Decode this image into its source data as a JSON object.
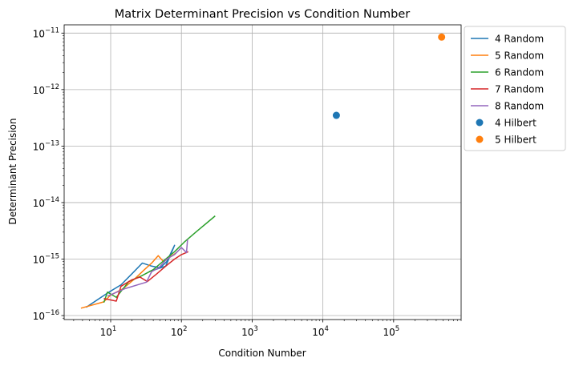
{
  "chart_data": {
    "type": "line",
    "title": "Matrix Determinant Precision vs Condition Number",
    "xlabel": "Condition Number",
    "ylabel": "Determinant Precision",
    "xscale": "log",
    "yscale": "log",
    "xlim": [
      2.2,
      900000
    ],
    "ylim": [
      8.5e-17,
      1.4e-11
    ],
    "grid": true,
    "legend_position": "outside-top-right",
    "x_ticks": [
      {
        "value": 10,
        "base": "10",
        "exp": "1"
      },
      {
        "value": 100,
        "base": "10",
        "exp": "2"
      },
      {
        "value": 1000,
        "base": "10",
        "exp": "3"
      },
      {
        "value": 10000,
        "base": "10",
        "exp": "4"
      },
      {
        "value": 100000,
        "base": "10",
        "exp": "5"
      }
    ],
    "y_ticks": [
      {
        "value": 1e-16,
        "base": "10",
        "exp": "−16"
      },
      {
        "value": 1e-15,
        "base": "10",
        "exp": "−15"
      },
      {
        "value": 1e-14,
        "base": "10",
        "exp": "−14"
      },
      {
        "value": 1e-13,
        "base": "10",
        "exp": "−13"
      },
      {
        "value": 1e-12,
        "base": "10",
        "exp": "−12"
      },
      {
        "value": 1e-11,
        "base": "10",
        "exp": "−11"
      }
    ],
    "series": [
      {
        "name": "4 Random",
        "kind": "line",
        "color": "#1f77b4",
        "points": [
          [
            4.5,
            1.4e-16
          ],
          [
            9,
            2.5e-16
          ],
          [
            14,
            3.5e-16
          ],
          [
            20,
            5.5e-16
          ],
          [
            28,
            8.5e-16
          ],
          [
            38,
            7.5e-16
          ],
          [
            50,
            7e-16
          ],
          [
            62,
            9e-16
          ],
          [
            80,
            1.75e-15
          ],
          [
            60,
            7.5e-16
          ],
          [
            35,
            6e-16
          ]
        ]
      },
      {
        "name": "5 Random",
        "kind": "line",
        "color": "#ff7f0e",
        "points": [
          [
            3.8,
            1.35e-16
          ],
          [
            8,
            1.75e-16
          ],
          [
            10,
            2.3e-16
          ],
          [
            15,
            3e-16
          ],
          [
            22,
            4.5e-16
          ],
          [
            30,
            6.5e-16
          ],
          [
            38,
            8.5e-16
          ],
          [
            47,
            1.15e-15
          ],
          [
            56,
            9e-16
          ],
          [
            70,
            1.1e-15
          ],
          [
            85,
            1.3e-15
          ]
        ]
      },
      {
        "name": "6 Random",
        "kind": "line",
        "color": "#2ca02c",
        "points": [
          [
            8,
            1.7e-16
          ],
          [
            9,
            2.6e-16
          ],
          [
            12,
            2.1e-16
          ],
          [
            18,
            4e-16
          ],
          [
            27,
            5e-16
          ],
          [
            40,
            6.5e-16
          ],
          [
            60,
            1e-15
          ],
          [
            80,
            1.35e-15
          ],
          [
            110,
            2e-15
          ],
          [
            160,
            3e-15
          ],
          [
            300,
            5.8e-15
          ]
        ]
      },
      {
        "name": "7 Random",
        "kind": "line",
        "color": "#d62728",
        "points": [
          [
            8,
            2e-16
          ],
          [
            12,
            1.8e-16
          ],
          [
            14,
            3.3e-16
          ],
          [
            20,
            4.3e-16
          ],
          [
            26,
            4.8e-16
          ],
          [
            33,
            4e-16
          ],
          [
            45,
            5.5e-16
          ],
          [
            60,
            7.5e-16
          ],
          [
            80,
            1e-15
          ],
          [
            100,
            1.2e-15
          ],
          [
            125,
            1.35e-15
          ]
        ]
      },
      {
        "name": "8 Random",
        "kind": "line",
        "color": "#9467bd",
        "points": [
          [
            9,
            2.2e-16
          ],
          [
            16,
            3e-16
          ],
          [
            32,
            3.9e-16
          ],
          [
            38,
            6e-16
          ],
          [
            48,
            7e-16
          ],
          [
            62,
            1e-15
          ],
          [
            80,
            1.2e-15
          ],
          [
            100,
            1.6e-15
          ],
          [
            118,
            1.3e-15
          ],
          [
            122,
            2.2e-15
          ]
        ]
      },
      {
        "name": "4 Hilbert",
        "kind": "scatter",
        "color": "#1f77b4",
        "points": [
          [
            15500,
            3.5e-13
          ]
        ]
      },
      {
        "name": "5 Hilbert",
        "kind": "scatter",
        "color": "#ff7f0e",
        "points": [
          [
            477000,
            8.5e-12
          ]
        ]
      }
    ]
  }
}
